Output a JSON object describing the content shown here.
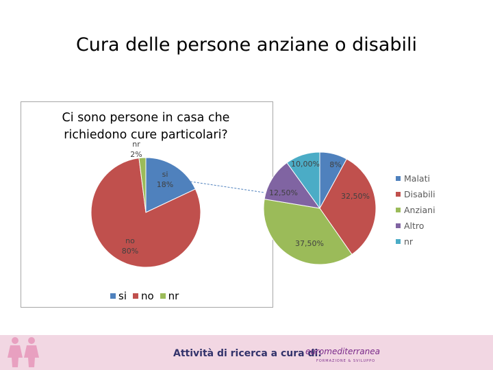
{
  "slide": {
    "title": "Cura delle persone anziane o disabili"
  },
  "footer": {
    "text": "Attività di ricerca a cura di:",
    "logo_text": "euromediterranea",
    "logo_subtext": "FORMAZIONE & SVILUPPO",
    "bg_color": "#f2d7e3"
  },
  "chart_data": [
    {
      "type": "pie",
      "title": "Ci sono persone in casa che richiedono cure particolari?",
      "title_lines": [
        "Ci sono persone in casa che",
        "richiedono cure particolari?"
      ],
      "categories": [
        "si",
        "no",
        "nr"
      ],
      "values": [
        18,
        80,
        2
      ],
      "value_labels": [
        "18%",
        "80%",
        "2%"
      ],
      "colors": [
        "#4f81bd",
        "#c0504d",
        "#9bbb59"
      ],
      "legend": [
        "si",
        "no",
        "nr"
      ],
      "legend_position": "bottom"
    },
    {
      "type": "pie",
      "title": "",
      "categories": [
        "Malati",
        "Disabili",
        "Anziani",
        "Altro",
        "nr"
      ],
      "values": [
        8,
        32.5,
        37.5,
        12.5,
        10
      ],
      "value_labels": [
        "8%",
        "32,50%",
        "37,50%",
        "12,50%",
        "10,00%"
      ],
      "colors": [
        "#4f81bd",
        "#c0504d",
        "#9bbb59",
        "#8064a2",
        "#4bacc6"
      ],
      "legend": [
        "Malati",
        "Disabili",
        "Anziani",
        "Altro",
        "nr"
      ],
      "legend_position": "right"
    }
  ]
}
